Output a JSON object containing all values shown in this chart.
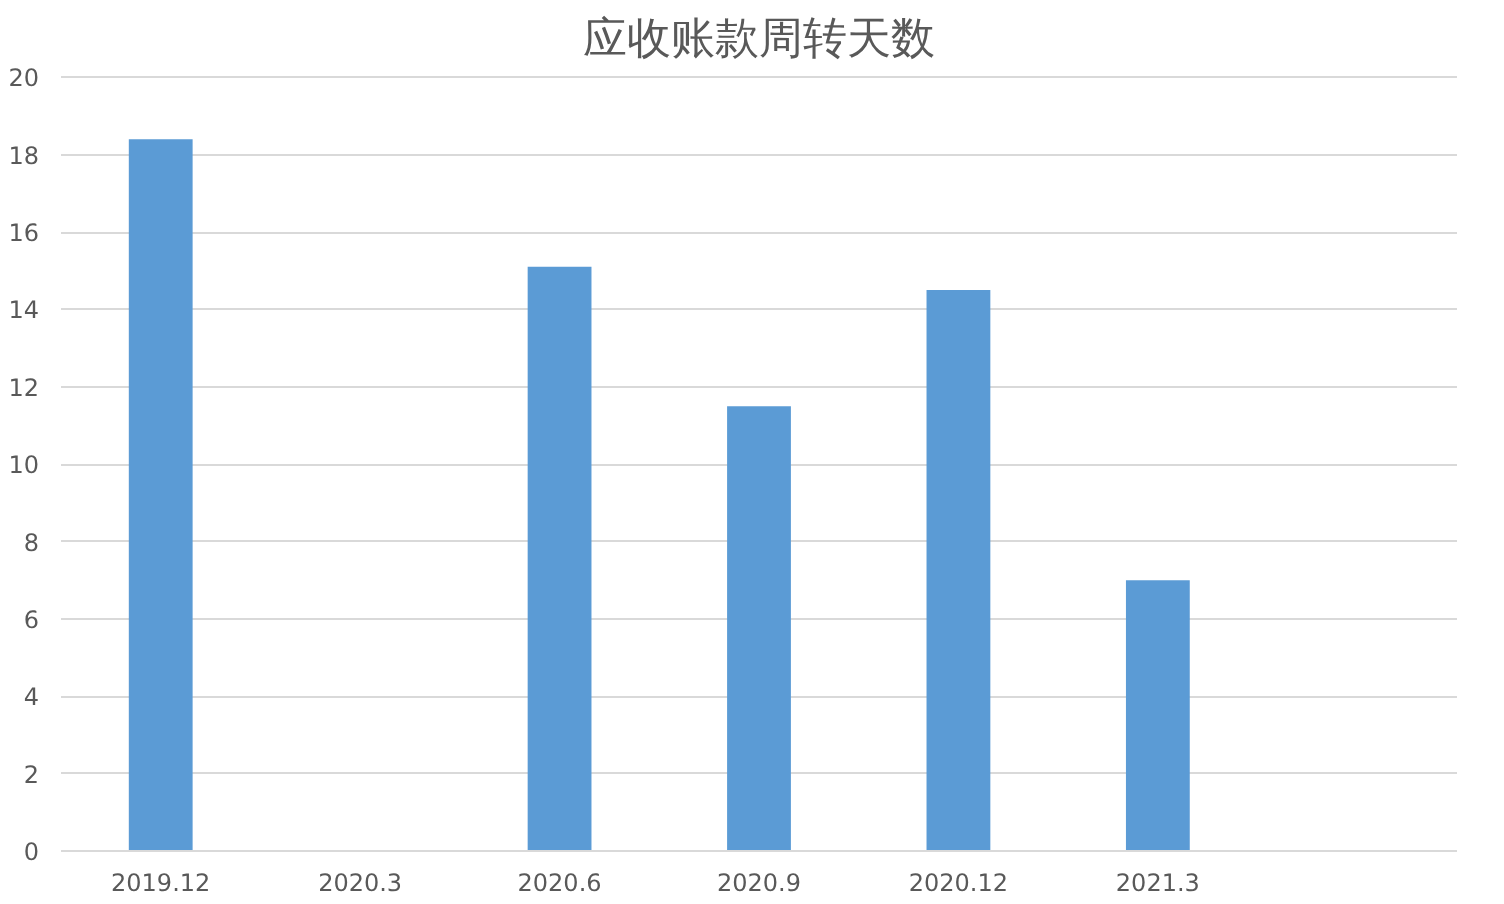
{
  "chart_data": {
    "type": "bar",
    "title": "应收账款周转天数",
    "categories": [
      "2019.12",
      "2020.3",
      "2020.6",
      "2020.9",
      "2020.12",
      "2021.3",
      null
    ],
    "values": [
      18.4,
      null,
      15.1,
      11.5,
      14.5,
      7.0,
      null
    ],
    "color": "#5b9bd5",
    "ylim": [
      0,
      20
    ],
    "yticks": [
      0,
      2,
      4,
      6,
      8,
      10,
      12,
      14,
      16,
      18,
      20
    ],
    "grid": "y"
  }
}
